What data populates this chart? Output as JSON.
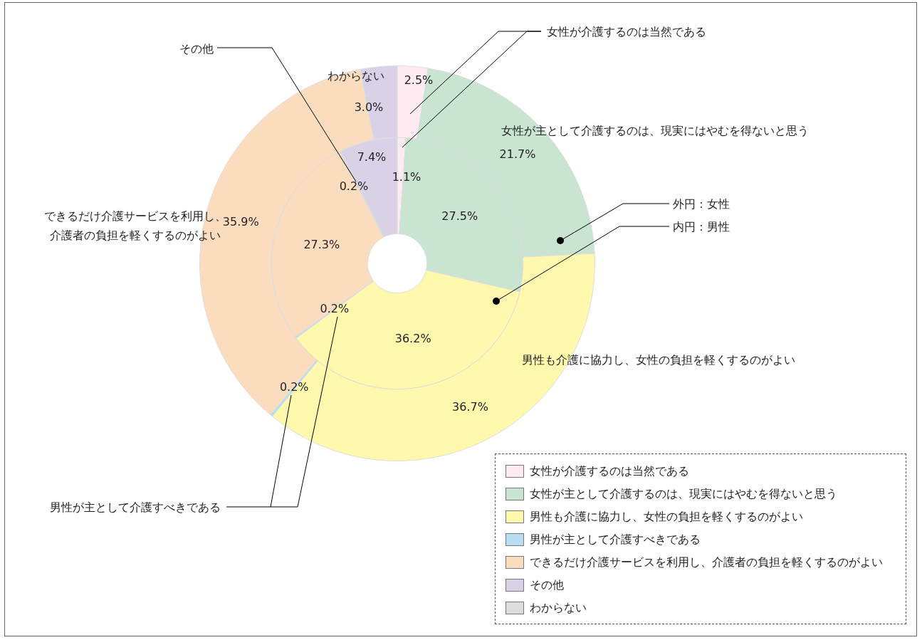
{
  "chart_data": {
    "type": "donut",
    "categories": [
      "女性が介護するのは当然である",
      "女性が主として介護するのは、現実にはやむを得ないと思う",
      "男性も介護に協力し、女性の負担を軽くするのがよい",
      "男性が主として介護すべきである",
      "できるだけ介護サービスを利用し、介護者の負担を軽くするのがよい",
      "その他",
      "わからない"
    ],
    "colors": [
      "#fdebf1",
      "#c9e4d0",
      "#fff8ad",
      "#b7def2",
      "#fbdcbe",
      "#d9d1e6",
      "#dcdcdc"
    ],
    "series": [
      {
        "name": "外円：女性",
        "values": [
          2.5,
          21.7,
          36.7,
          0.2,
          35.9,
          null,
          3.0
        ],
        "value_labels": [
          "2.5%",
          "21.7%",
          "36.7%",
          "0.2%",
          "35.9%",
          null,
          "3.0%"
        ],
        "colors": [
          "#fdebf1",
          "#c9e4d0",
          "#fff8ad",
          "#b7def2",
          "#fbdcbe",
          "#d9d1e6",
          "#d9d1e6"
        ]
      },
      {
        "name": "内円：男性",
        "values": [
          1.1,
          27.5,
          36.2,
          0.2,
          27.3,
          0.2,
          7.4
        ],
        "value_labels": [
          "1.1%",
          "27.5%",
          "36.2%",
          "0.2%",
          "27.3%",
          "0.2%",
          "7.4%"
        ],
        "colors": [
          "#fdebf1",
          "#c9e4d0",
          "#fff8ad",
          "#b7def2",
          "#fbdcbe",
          "#d9d1e6",
          "#d9d1e6"
        ]
      }
    ],
    "annotations": [
      "その他",
      "わからない",
      "女性が介護するのは当然である",
      "女性が主として介護するのは、現実にはやむを得ないと思う",
      "できるだけ介護サービスを利用し、",
      "介護者の負担を軽くするのがよい",
      "男性も介護に協力し、女性の負担を軽くするのがよい",
      "男性が主として介護すべきである"
    ],
    "legend": "bottom right"
  }
}
